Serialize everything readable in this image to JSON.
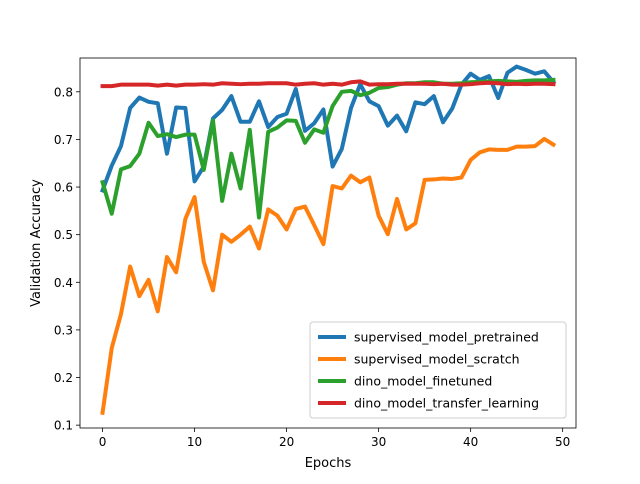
{
  "chart_data": {
    "type": "line",
    "xlabel": "Epochs",
    "ylabel": "Validation Accuracy",
    "xlim": [
      -2.45,
      51.45
    ],
    "ylim": [
      0.094,
      0.871
    ],
    "xticks": [
      0,
      10,
      20,
      30,
      40,
      50
    ],
    "yticks": [
      0.1,
      0.2,
      0.3,
      0.4,
      0.5,
      0.6,
      0.7,
      0.8
    ],
    "grid": false,
    "legend_position": "lower right",
    "x": [
      0,
      1,
      2,
      3,
      4,
      5,
      6,
      7,
      8,
      9,
      10,
      11,
      12,
      13,
      14,
      15,
      16,
      17,
      18,
      19,
      20,
      21,
      22,
      23,
      24,
      25,
      26,
      27,
      28,
      29,
      30,
      31,
      32,
      33,
      34,
      35,
      36,
      37,
      38,
      39,
      40,
      41,
      42,
      43,
      44,
      45,
      46,
      47,
      48,
      49
    ],
    "series": [
      {
        "name": "supervised_model_pretrained",
        "color": "#1f77b4",
        "values": [
          0.593,
          0.645,
          0.686,
          0.766,
          0.788,
          0.779,
          0.776,
          0.67,
          0.767,
          0.766,
          0.612,
          0.643,
          0.744,
          0.762,
          0.791,
          0.737,
          0.737,
          0.78,
          0.726,
          0.747,
          0.754,
          0.806,
          0.718,
          0.734,
          0.763,
          0.643,
          0.68,
          0.766,
          0.816,
          0.78,
          0.77,
          0.729,
          0.75,
          0.717,
          0.778,
          0.774,
          0.791,
          0.736,
          0.765,
          0.815,
          0.838,
          0.825,
          0.833,
          0.787,
          0.84,
          0.853,
          0.846,
          0.838,
          0.843,
          0.82
        ]
      },
      {
        "name": "supervised_model_scratch",
        "color": "#ff7f0e",
        "values": [
          0.126,
          0.262,
          0.333,
          0.433,
          0.371,
          0.405,
          0.339,
          0.453,
          0.421,
          0.533,
          0.579,
          0.443,
          0.383,
          0.5,
          0.485,
          0.5,
          0.517,
          0.471,
          0.553,
          0.54,
          0.511,
          0.554,
          0.559,
          0.52,
          0.48,
          0.602,
          0.597,
          0.624,
          0.61,
          0.62,
          0.54,
          0.501,
          0.575,
          0.511,
          0.524,
          0.615,
          0.616,
          0.618,
          0.617,
          0.62,
          0.657,
          0.673,
          0.679,
          0.678,
          0.678,
          0.685,
          0.685,
          0.686,
          0.701,
          0.689
        ]
      },
      {
        "name": "dino_model_finetuned",
        "color": "#2ca02c",
        "values": [
          0.61,
          0.544,
          0.637,
          0.644,
          0.67,
          0.735,
          0.707,
          0.711,
          0.705,
          0.71,
          0.71,
          0.636,
          0.74,
          0.571,
          0.67,
          0.597,
          0.72,
          0.536,
          0.716,
          0.725,
          0.74,
          0.739,
          0.693,
          0.721,
          0.714,
          0.77,
          0.8,
          0.802,
          0.793,
          0.798,
          0.808,
          0.81,
          0.815,
          0.818,
          0.818,
          0.82,
          0.82,
          0.817,
          0.817,
          0.818,
          0.82,
          0.821,
          0.822,
          0.823,
          0.822,
          0.821,
          0.823,
          0.824,
          0.824,
          0.825
        ]
      },
      {
        "name": "dino_model_transfer_learning",
        "color": "#d62728",
        "values": [
          0.812,
          0.812,
          0.815,
          0.815,
          0.815,
          0.815,
          0.813,
          0.815,
          0.813,
          0.815,
          0.815,
          0.816,
          0.815,
          0.818,
          0.817,
          0.816,
          0.817,
          0.817,
          0.818,
          0.818,
          0.818,
          0.815,
          0.817,
          0.818,
          0.815,
          0.817,
          0.815,
          0.82,
          0.822,
          0.815,
          0.816,
          0.816,
          0.817,
          0.817,
          0.817,
          0.817,
          0.816,
          0.817,
          0.815,
          0.815,
          0.816,
          0.818,
          0.819,
          0.818,
          0.816,
          0.817,
          0.816,
          0.817,
          0.817,
          0.816
        ]
      }
    ]
  }
}
